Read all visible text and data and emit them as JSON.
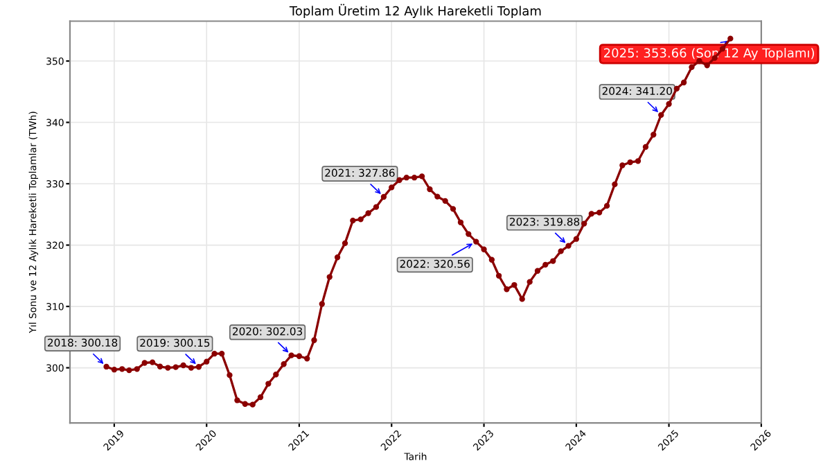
{
  "chart_data": {
    "type": "line",
    "title": "Toplam Üretim 12 Aylık Hareketli Toplam",
    "xlabel": "Tarih",
    "ylabel": "Yıl Sonu ve 12 Aylık Hareketli Toplamlar (TWh)",
    "x": [
      "2018-12",
      "2019-01",
      "2019-02",
      "2019-03",
      "2019-04",
      "2019-05",
      "2019-06",
      "2019-07",
      "2019-08",
      "2019-09",
      "2019-10",
      "2019-11",
      "2019-12",
      "2020-01",
      "2020-02",
      "2020-03",
      "2020-04",
      "2020-05",
      "2020-06",
      "2020-07",
      "2020-08",
      "2020-09",
      "2020-10",
      "2020-11",
      "2020-12",
      "2021-01",
      "2021-02",
      "2021-03",
      "2021-04",
      "2021-05",
      "2021-06",
      "2021-07",
      "2021-08",
      "2021-09",
      "2021-10",
      "2021-11",
      "2021-12",
      "2022-01",
      "2022-02",
      "2022-03",
      "2022-04",
      "2022-05",
      "2022-06",
      "2022-07",
      "2022-08",
      "2022-09",
      "2022-10",
      "2022-11",
      "2022-12",
      "2023-01",
      "2023-02",
      "2023-03",
      "2023-04",
      "2023-05",
      "2023-06",
      "2023-07",
      "2023-08",
      "2023-09",
      "2023-10",
      "2023-11",
      "2023-12",
      "2024-01",
      "2024-02",
      "2024-03",
      "2024-04",
      "2024-05",
      "2024-06",
      "2024-07",
      "2024-08",
      "2024-09",
      "2024-10",
      "2024-11",
      "2024-12",
      "2025-01",
      "2025-02",
      "2025-03",
      "2025-04",
      "2025-05",
      "2025-06",
      "2025-07",
      "2025-08",
      "2025-09"
    ],
    "series": [
      {
        "color": "#8b0000",
        "values": [
          300.18,
          299.7,
          299.8,
          299.6,
          299.8,
          300.8,
          300.9,
          300.2,
          300.0,
          300.1,
          300.4,
          300.0,
          300.15,
          301.0,
          302.3,
          302.3,
          298.8,
          294.7,
          294.1,
          294.0,
          295.2,
          297.4,
          298.9,
          300.6,
          302.03,
          301.9,
          301.5,
          304.5,
          310.4,
          314.8,
          318.0,
          320.3,
          324.0,
          324.2,
          325.2,
          326.2,
          327.86,
          329.4,
          330.6,
          331.0,
          331.0,
          331.2,
          329.1,
          327.9,
          327.2,
          325.9,
          323.7,
          321.8,
          320.56,
          319.3,
          317.6,
          315.0,
          312.8,
          313.5,
          311.2,
          314.0,
          315.8,
          316.8,
          317.4,
          319.0,
          319.88,
          321.0,
          323.5,
          325.1,
          325.3,
          326.4,
          329.9,
          333.0,
          333.5,
          333.7,
          336.0,
          338.0,
          341.2,
          343.0,
          345.5,
          346.5,
          349.0,
          350.0,
          349.3,
          350.5,
          352.0,
          353.66
        ]
      }
    ],
    "marker": "circle",
    "line_style": "solid",
    "grid": true,
    "xlim": [
      "2018-07-10",
      "2026-01-01"
    ],
    "ylim": [
      291,
      356.5
    ],
    "xticks": [
      {
        "value": "2019-01-01",
        "label": "2019"
      },
      {
        "value": "2020-01-01",
        "label": "2020"
      },
      {
        "value": "2021-01-01",
        "label": "2021"
      },
      {
        "value": "2022-01-01",
        "label": "2022"
      },
      {
        "value": "2023-01-01",
        "label": "2023"
      },
      {
        "value": "2024-01-01",
        "label": "2024"
      },
      {
        "value": "2025-01-01",
        "label": "2025"
      },
      {
        "value": "2026-01-01",
        "label": "2026"
      }
    ],
    "yticks": [
      300,
      310,
      320,
      330,
      340,
      350
    ],
    "annotations": [
      {
        "text": "2018: 300.18",
        "x": "2018-12",
        "y": 300.18
      },
      {
        "text": "2019: 300.15",
        "x": "2019-12",
        "y": 300.15
      },
      {
        "text": "2020: 302.03",
        "x": "2020-12",
        "y": 302.03
      },
      {
        "text": "2021: 327.86",
        "x": "2021-12",
        "y": 327.86
      },
      {
        "text": "2022: 320.56",
        "x": "2022-12",
        "y": 320.56
      },
      {
        "text": "2023: 319.88",
        "x": "2023-12",
        "y": 319.88
      },
      {
        "text": "2024: 341.20",
        "x": "2024-12",
        "y": 341.2
      },
      {
        "text": "2025: 353.66 (Son 12 Ay Toplamı)",
        "x": "2025-09",
        "y": 353.66
      }
    ]
  }
}
